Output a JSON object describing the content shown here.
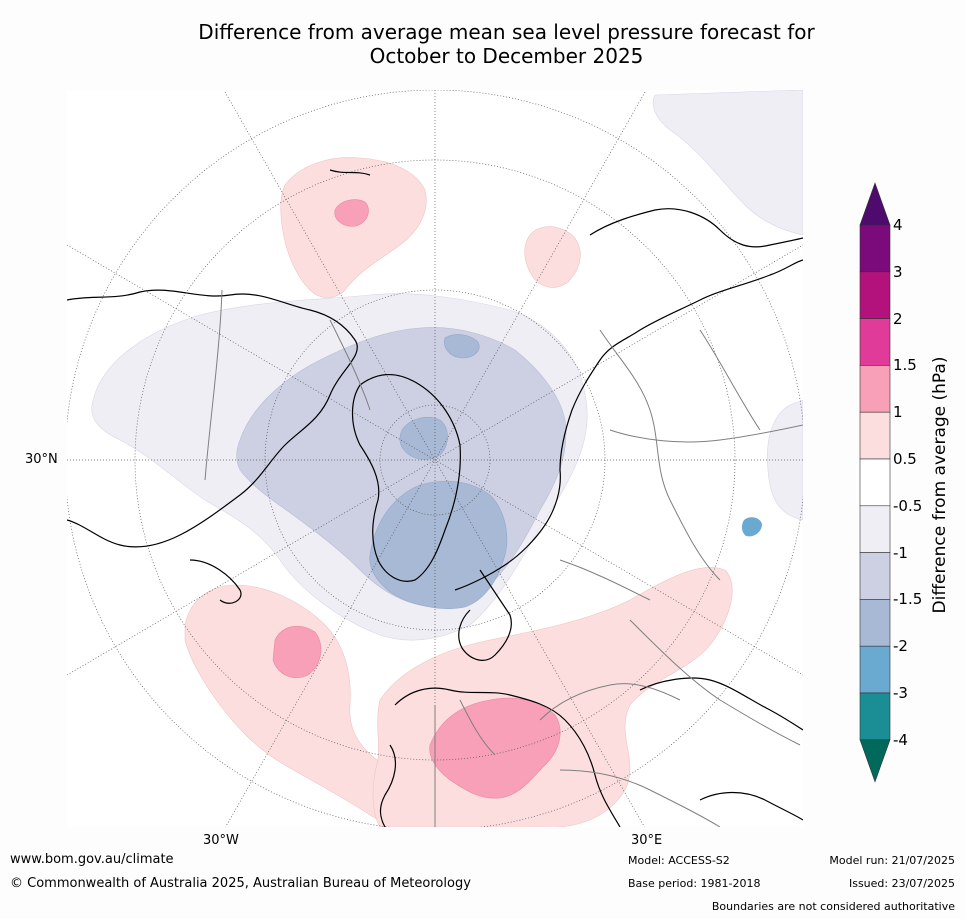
{
  "title": {
    "line1": "Difference from average mean sea level pressure forecast for",
    "line2": "October to December 2025"
  },
  "map": {
    "projection": "north-polar-stereographic",
    "lat_labels": [
      "30°N"
    ],
    "lon_labels": [
      "30°W",
      "30°E"
    ],
    "colors": {
      "ocean_land": "#ffffff",
      "pos_0_5_1": "#fcdede",
      "pos_1_1_5": "#f7a0b8",
      "neg_0_5_1": "#f0eef5",
      "neg_1_1_5": "#cdd0e3",
      "neg_1_5_2": "#a8b9d6",
      "coast": "#000000",
      "borders": "#7f7f7f"
    }
  },
  "colorbar": {
    "label": "Difference from average (hPa)",
    "ticks": [
      "4",
      "3",
      "2",
      "1.5",
      "1",
      "0.5",
      "-0.5",
      "-1",
      "-1.5",
      "-2",
      "-3",
      "-4"
    ],
    "colors": [
      "#7b0a7b",
      "#b3117c",
      "#e03b98",
      "#f7a0b8",
      "#fcdede",
      "#ffffff",
      "#f0eef5",
      "#cdd0e3",
      "#a8b9d6",
      "#6aa9d0",
      "#1a8e94"
    ],
    "top_triangle": "#4d0b6d",
    "bottom_triangle": "#00695c"
  },
  "footer": {
    "url": "www.bom.gov.au/climate",
    "copyright": "© Commonwealth of Australia 2025, Australian Bureau of Meteorology",
    "model": "Model: ACCESS-S2",
    "base_period": "Base period: 1981-2018",
    "model_run": "Model run: 21/07/2025",
    "issued": "Issued: 23/07/2025",
    "boundaries": "Boundaries are not considered authoritative"
  }
}
